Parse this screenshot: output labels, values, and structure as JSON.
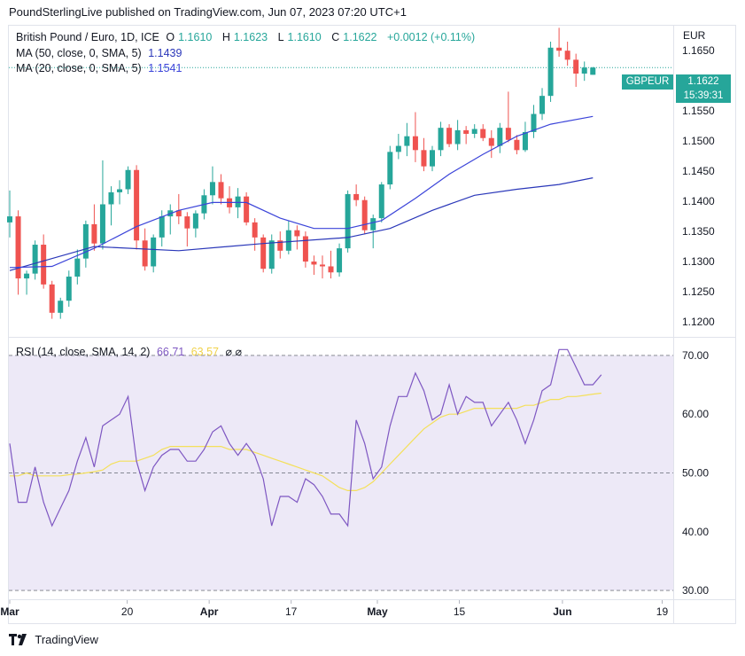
{
  "publisher_line": "PoundSterlingLive published on TradingView.com, Jun 07, 2023 07:20 UTC+1",
  "legend": {
    "title": "British Pound / Euro, 1D, ICE",
    "o_label": "O",
    "o_val": "1.1610",
    "h_label": "H",
    "h_val": "1.1623",
    "l_label": "L",
    "l_val": "1.1610",
    "c_label": "C",
    "c_val": "1.1622",
    "change": "+0.0012 (+0.11%)",
    "ma50_label": "MA (50, close, 0, SMA, 5)",
    "ma50_val": "1.1439",
    "ma20_label": "MA (20, close, 0, SMA, 5)",
    "ma20_val": "1.1541",
    "rsi_label": "RSI (14, close, SMA, 14, 2)",
    "rsi_val": "66.71",
    "rsi_sma_val": "63.57",
    "rsi_icons": "⌀ ⌀"
  },
  "currency": "EUR",
  "symbol_tag": "GBPEUR",
  "price_tag": {
    "price": "1.1622",
    "countdown": "15:39:31"
  },
  "footer_brand": "TradingView",
  "colors": {
    "up": "#26a69a",
    "down": "#ef5350",
    "ma50": "#2a37b9",
    "ma20": "#3b44d9",
    "rsi": "#7e57c2",
    "rsi_ma": "#f4e05a",
    "rsi_band": "#ede9f7"
  },
  "chart_data": [
    {
      "type": "candlestick",
      "x_ticks": [
        "Mar",
        "20",
        "Apr",
        "17",
        "May",
        "15",
        "Jun",
        "19"
      ],
      "y_ticks": [
        1.12,
        1.125,
        1.13,
        1.135,
        1.14,
        1.145,
        1.15,
        1.155,
        1.165
      ],
      "ylim": [
        1.1175,
        1.169
      ],
      "last_price_line": 1.1622,
      "candles": [
        [
          1.1365,
          1.1418,
          1.134,
          1.1375
        ],
        [
          1.1375,
          1.1385,
          1.1245,
          1.1272
        ],
        [
          1.1272,
          1.1285,
          1.1245,
          1.128
        ],
        [
          1.128,
          1.1335,
          1.127,
          1.1328
        ],
        [
          1.1328,
          1.1345,
          1.1255,
          1.1262
        ],
        [
          1.1262,
          1.1268,
          1.1205,
          1.1215
        ],
        [
          1.1215,
          1.124,
          1.1205,
          1.1235
        ],
        [
          1.1235,
          1.1285,
          1.1225,
          1.1275
        ],
        [
          1.1275,
          1.132,
          1.1262,
          1.1305
        ],
        [
          1.1305,
          1.1368,
          1.129,
          1.1362
        ],
        [
          1.1362,
          1.1395,
          1.1318,
          1.133
        ],
        [
          1.133,
          1.1468,
          1.132,
          1.1395
        ],
        [
          1.1395,
          1.1425,
          1.136,
          1.1415
        ],
        [
          1.1415,
          1.1435,
          1.1395,
          1.142
        ],
        [
          1.142,
          1.1458,
          1.1412,
          1.1452
        ],
        [
          1.1452,
          1.146,
          1.132,
          1.1335
        ],
        [
          1.1335,
          1.1355,
          1.1285,
          1.1292
        ],
        [
          1.1292,
          1.1345,
          1.1282,
          1.134
        ],
        [
          1.134,
          1.1385,
          1.1325,
          1.1375
        ],
        [
          1.1375,
          1.1395,
          1.1345,
          1.1385
        ],
        [
          1.1385,
          1.1412,
          1.1362,
          1.1375
        ],
        [
          1.1375,
          1.1382,
          1.1325,
          1.1355
        ],
        [
          1.1355,
          1.1385,
          1.134,
          1.138
        ],
        [
          1.138,
          1.142,
          1.137,
          1.141
        ],
        [
          1.141,
          1.1458,
          1.1395,
          1.1432
        ],
        [
          1.1432,
          1.1445,
          1.1395,
          1.1405
        ],
        [
          1.1405,
          1.1425,
          1.138,
          1.139
        ],
        [
          1.139,
          1.1422,
          1.1372,
          1.1408
        ],
        [
          1.1408,
          1.1415,
          1.136,
          1.1365
        ],
        [
          1.1365,
          1.1372,
          1.1318,
          1.134
        ],
        [
          1.134,
          1.1345,
          1.1282,
          1.1288
        ],
        [
          1.1288,
          1.1345,
          1.128,
          1.1335
        ],
        [
          1.1335,
          1.135,
          1.1305,
          1.1318
        ],
        [
          1.1318,
          1.1368,
          1.1312,
          1.1352
        ],
        [
          1.1352,
          1.136,
          1.132,
          1.1342
        ],
        [
          1.1342,
          1.135,
          1.129,
          1.13
        ],
        [
          1.13,
          1.131,
          1.1278,
          1.1295
        ],
        [
          1.1295,
          1.131,
          1.1272,
          1.1292
        ],
        [
          1.1292,
          1.1318,
          1.1272,
          1.1282
        ],
        [
          1.1282,
          1.133,
          1.1275,
          1.1322
        ],
        [
          1.1322,
          1.1418,
          1.1315,
          1.1412
        ],
        [
          1.1412,
          1.1428,
          1.1392,
          1.1402
        ],
        [
          1.1402,
          1.1408,
          1.1345,
          1.1352
        ],
        [
          1.1352,
          1.1378,
          1.1322,
          1.1372
        ],
        [
          1.1372,
          1.1432,
          1.1365,
          1.1428
        ],
        [
          1.1428,
          1.1492,
          1.142,
          1.1482
        ],
        [
          1.1482,
          1.1512,
          1.147,
          1.1492
        ],
        [
          1.1492,
          1.153,
          1.1475,
          1.1508
        ],
        [
          1.1508,
          1.1548,
          1.1465,
          1.1485
        ],
        [
          1.1485,
          1.1505,
          1.145,
          1.1458
        ],
        [
          1.1458,
          1.1492,
          1.145,
          1.1485
        ],
        [
          1.1485,
          1.1532,
          1.1475,
          1.1522
        ],
        [
          1.1522,
          1.1528,
          1.149,
          1.1495
        ],
        [
          1.1495,
          1.1535,
          1.1485,
          1.1518
        ],
        [
          1.1518,
          1.1525,
          1.1495,
          1.1512
        ],
        [
          1.1512,
          1.1528,
          1.1505,
          1.152
        ],
        [
          1.152,
          1.1528,
          1.15,
          1.1505
        ],
        [
          1.1505,
          1.1518,
          1.1472,
          1.1492
        ],
        [
          1.1492,
          1.153,
          1.148,
          1.1522
        ],
        [
          1.1522,
          1.1582,
          1.1498,
          1.1502
        ],
        [
          1.1502,
          1.151,
          1.1478,
          1.1485
        ],
        [
          1.1485,
          1.1532,
          1.1482,
          1.1515
        ],
        [
          1.1515,
          1.156,
          1.1505,
          1.1545
        ],
        [
          1.1545,
          1.1588,
          1.1535,
          1.1575
        ],
        [
          1.1575,
          1.1665,
          1.1565,
          1.1655
        ],
        [
          1.1655,
          1.1688,
          1.164,
          1.165
        ],
        [
          1.165,
          1.1665,
          1.1625,
          1.1635
        ],
        [
          1.1635,
          1.1645,
          1.159,
          1.1612
        ],
        [
          1.1612,
          1.1632,
          1.16,
          1.1622
        ],
        [
          1.161,
          1.1623,
          1.161,
          1.1622
        ]
      ],
      "ma50_points": [
        [
          0,
          1.1285
        ],
        [
          10,
          1.1325
        ],
        [
          20,
          1.1318
        ],
        [
          30,
          1.133
        ],
        [
          40,
          1.134
        ],
        [
          45,
          1.1355
        ],
        [
          50,
          1.1385
        ],
        [
          55,
          1.141
        ],
        [
          60,
          1.142
        ],
        [
          65,
          1.1428
        ],
        [
          69,
          1.1439
        ]
      ],
      "ma20_points": [
        [
          0,
          1.129
        ],
        [
          5,
          1.1292
        ],
        [
          10,
          1.1322
        ],
        [
          15,
          1.1358
        ],
        [
          20,
          1.1385
        ],
        [
          24,
          1.1398
        ],
        [
          28,
          1.1398
        ],
        [
          32,
          1.1372
        ],
        [
          36,
          1.1355
        ],
        [
          40,
          1.1355
        ],
        [
          44,
          1.1368
        ],
        [
          48,
          1.1405
        ],
        [
          52,
          1.1445
        ],
        [
          56,
          1.1478
        ],
        [
          60,
          1.1508
        ],
        [
          64,
          1.1528
        ],
        [
          69,
          1.1541
        ]
      ]
    },
    {
      "type": "line",
      "name": "RSI",
      "y_ticks": [
        30.0,
        40.0,
        50.0,
        60.0,
        70.0
      ],
      "ylim": [
        28.5,
        73
      ],
      "bands": [
        30,
        50,
        70
      ],
      "rsi": [
        55,
        45,
        45,
        51,
        45,
        41,
        44,
        47,
        52,
        56,
        51,
        58,
        59,
        60,
        63,
        52,
        47,
        51,
        53,
        54,
        54,
        52,
        52,
        54,
        57,
        58,
        55,
        53,
        55,
        53,
        49,
        41,
        46,
        46,
        45,
        49,
        48,
        46,
        43,
        43,
        41,
        59,
        55,
        49,
        51,
        58,
        63,
        63,
        67,
        64,
        59,
        60,
        65,
        60,
        63,
        62,
        62,
        58,
        60,
        62,
        59,
        55,
        59,
        64,
        65,
        71,
        71,
        68,
        65,
        65,
        66.71
      ],
      "rsi_ma": [
        49.5,
        49.5,
        50,
        49.5,
        49.5,
        49.5,
        49.5,
        49.7,
        49.8,
        50,
        50.2,
        50.5,
        51.5,
        52,
        52,
        52,
        52.5,
        53,
        54,
        54.5,
        54.5,
        54.5,
        54.5,
        54.5,
        54.5,
        54.5,
        54,
        54,
        54,
        53.5,
        53,
        52.5,
        52,
        51.5,
        51,
        50.5,
        50,
        49.5,
        48.5,
        47.5,
        47,
        47,
        47.5,
        48.5,
        50,
        51.5,
        53,
        54.5,
        56,
        57.5,
        58.5,
        59.5,
        60,
        60,
        60.5,
        61,
        61,
        61,
        61,
        61,
        61,
        61.5,
        61.5,
        62,
        62.5,
        62.5,
        63,
        63,
        63.2,
        63.4,
        63.57
      ]
    }
  ]
}
